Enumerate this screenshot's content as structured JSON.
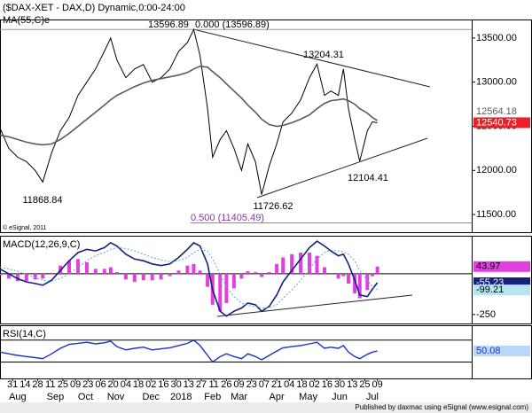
{
  "chart_data": [
    {
      "type": "line",
      "title": "($DAX-XET - DAX,D) Dynamic,0:00-24:00",
      "x": [
        0,
        7,
        14,
        21,
        28,
        34,
        41,
        48,
        55,
        62,
        69,
        76,
        83,
        88,
        93,
        100,
        107,
        114,
        121,
        128,
        135,
        142,
        149,
        154,
        159,
        165,
        169,
        175,
        180,
        186,
        192,
        197,
        203,
        208,
        214,
        220,
        225,
        232,
        239,
        246,
        252,
        258,
        263,
        269,
        273,
        277,
        282,
        286,
        292,
        296,
        300
      ],
      "xlim": [
        0,
        375
      ],
      "xticks": [
        {
          "value": 10,
          "label": "31"
        },
        {
          "value": 20,
          "label": "14"
        },
        {
          "value": 30,
          "label": "28"
        },
        {
          "value": 40,
          "label": "11"
        },
        {
          "value": 50,
          "label": "25"
        },
        {
          "value": 60,
          "label": "09"
        },
        {
          "value": 70,
          "label": "23"
        },
        {
          "value": 80,
          "label": "06"
        },
        {
          "value": 90,
          "label": "20"
        },
        {
          "value": 100,
          "label": "04"
        },
        {
          "value": 110,
          "label": "18"
        },
        {
          "value": 120,
          "label": "02"
        },
        {
          "value": 130,
          "label": "16"
        },
        {
          "value": 140,
          "label": "30"
        },
        {
          "value": 150,
          "label": "13"
        },
        {
          "value": 160,
          "label": "27"
        },
        {
          "value": 170,
          "label": "11"
        },
        {
          "value": 180,
          "label": "26"
        },
        {
          "value": 190,
          "label": "09"
        },
        {
          "value": 200,
          "label": "23"
        },
        {
          "value": 210,
          "label": "07"
        },
        {
          "value": 220,
          "label": "21"
        },
        {
          "value": 230,
          "label": "04"
        },
        {
          "value": 240,
          "label": "18"
        },
        {
          "value": 250,
          "label": "02"
        },
        {
          "value": 260,
          "label": "16"
        },
        {
          "value": 270,
          "label": "30"
        },
        {
          "value": 280,
          "label": "13"
        },
        {
          "value": 290,
          "label": "25"
        },
        {
          "value": 300,
          "label": "09"
        }
      ],
      "month_ticks": [
        {
          "value": 14,
          "label": "Aug"
        },
        {
          "value": 44,
          "label": "Sep"
        },
        {
          "value": 68,
          "label": "Oct"
        },
        {
          "value": 92,
          "label": "Nov"
        },
        {
          "value": 120,
          "label": "Dec"
        },
        {
          "value": 144,
          "label": "2018"
        },
        {
          "value": 169,
          "label": "Feb"
        },
        {
          "value": 190,
          "label": "Mar"
        },
        {
          "value": 220,
          "label": "Apr"
        },
        {
          "value": 245,
          "label": "May"
        },
        {
          "value": 270,
          "label": "Jun"
        },
        {
          "value": 296,
          "label": "Jul"
        }
      ],
      "ylim": [
        11300,
        13710
      ],
      "yticks": [
        {
          "value": 13500,
          "label": "13500.00"
        },
        {
          "value": 13000,
          "label": "13000.00"
        },
        {
          "value": 12500,
          "label": "12500.00"
        },
        {
          "value": 12000,
          "label": "12000.00"
        },
        {
          "value": 11500,
          "label": "11500.00"
        }
      ],
      "levels": [
        {
          "value": 13596.89,
          "color": "#9a9a9a"
        },
        {
          "value": 11405.49,
          "color": "#b070c8"
        }
      ],
      "annotations": [
        "13596.89",
        "0.000 (13596.89)",
        "13204.31",
        "11868.84",
        "11726.62",
        "12104.41",
        "0.500 (11405.49)",
        "© eSignal, 2011"
      ],
      "series": [
        {
          "color": "#000000",
          "width": 1,
          "last_label": "12540.73",
          "label_fill": "#e8202a",
          "label_text": "#ffffff",
          "values": [
            12480,
            12250,
            12150,
            12100,
            12000,
            11868.84,
            12200,
            12450,
            12600,
            12850,
            13000,
            13150,
            13350,
            13500,
            13250,
            13050,
            13150,
            13200,
            13000,
            13050,
            13150,
            13350,
            13450,
            13596.89,
            13300,
            12700,
            12150,
            12350,
            12450,
            12250,
            12000,
            12300,
            12100,
            11726.62,
            12050,
            12300,
            12550,
            12650,
            12800,
            13050,
            13204.31,
            12850,
            12900,
            12850,
            13150,
            12700,
            12350,
            12104.41,
            12450,
            12550,
            12540.73
          ]
        },
        {
          "name": "MA(55,C)e",
          "color": "#5a5a5a",
          "width": 1.6,
          "last_label": "12564.18",
          "label_text": "#5a5a5a",
          "values": [
            12400,
            12380,
            12350,
            12320,
            12300,
            12290,
            12300,
            12350,
            12420,
            12500,
            12580,
            12660,
            12740,
            12800,
            12850,
            12900,
            12950,
            12990,
            13020,
            13040,
            13060,
            13080,
            13110,
            13150,
            13180,
            13170,
            13120,
            13050,
            12980,
            12900,
            12820,
            12740,
            12660,
            12580,
            12520,
            12500,
            12510,
            12540,
            12580,
            12630,
            12700,
            12760,
            12790,
            12800,
            12810,
            12790,
            12750,
            12700,
            12650,
            12600,
            12564.18
          ]
        }
      ]
    },
    {
      "type": "line",
      "title": "MACD(12,26,9,C)",
      "ylim": [
        -305,
        233
      ],
      "yticks": [
        -250
      ],
      "hlines": [
        0
      ],
      "series": [
        {
          "kind": "histogram",
          "color": "#e040e0",
          "last_label": "43.97",
          "label_fill": "#e040e0",
          "label_text": "#000000",
          "values": [
            -10,
            -30,
            -45,
            -45,
            -35,
            -30,
            5,
            50,
            80,
            90,
            70,
            30,
            30,
            40,
            10,
            -35,
            -50,
            -40,
            -40,
            -35,
            -15,
            20,
            50,
            60,
            20,
            -80,
            -190,
            -230,
            -180,
            -90,
            -30,
            15,
            10,
            -20,
            10,
            60,
            100,
            120,
            130,
            130,
            110,
            40,
            -5,
            -30,
            -15,
            -60,
            -120,
            -150,
            -100,
            -15,
            43.97
          ]
        },
        {
          "color": "#14207a",
          "width": 1.6,
          "last_label": "-55.23",
          "label_fill": "#14207a",
          "label_text": "#ffffff",
          "values": [
            30,
            0,
            -30,
            -50,
            -60,
            -70,
            -40,
            20,
            80,
            130,
            150,
            140,
            160,
            190,
            170,
            120,
            90,
            80,
            60,
            50,
            60,
            100,
            150,
            190,
            170,
            60,
            -100,
            -230,
            -260,
            -230,
            -210,
            -180,
            -190,
            -230,
            -200,
            -130,
            -50,
            20,
            90,
            160,
            200,
            170,
            140,
            110,
            120,
            60,
            -40,
            -130,
            -140,
            -95,
            -55.23
          ]
        },
        {
          "color": "#5aa8c8",
          "width": 1,
          "dotted": true,
          "last_label": "-99.21",
          "label_fill": "#b8e4f0",
          "label_text": "#000000",
          "values": [
            40,
            30,
            15,
            -5,
            -25,
            -40,
            -45,
            -30,
            0,
            40,
            80,
            110,
            130,
            150,
            160,
            155,
            140,
            120,
            100,
            85,
            75,
            80,
            100,
            130,
            150,
            140,
            90,
            0,
            -80,
            -140,
            -180,
            -195,
            -200,
            -210,
            -210,
            -190,
            -150,
            -100,
            -40,
            30,
            90,
            130,
            145,
            140,
            135,
            120,
            80,
            20,
            -40,
            -80,
            -99.21
          ]
        }
      ]
    },
    {
      "type": "line",
      "title": "RSI(14,C)",
      "ylim": [
        0,
        97
      ],
      "hlines": [
        70,
        30
      ],
      "series": [
        {
          "color": "#2030c8",
          "width": 1.4,
          "last_label": "50.08",
          "label_fill": "#b8d8f8",
          "label_text": "#2030c8",
          "values": [
            48,
            45,
            42,
            40,
            38,
            36,
            45,
            55,
            62,
            64,
            66,
            63,
            65,
            68,
            58,
            52,
            55,
            57,
            52,
            54,
            56,
            60,
            64,
            70,
            60,
            42,
            30,
            40,
            45,
            40,
            36,
            45,
            40,
            34,
            42,
            50,
            56,
            58,
            60,
            63,
            66,
            55,
            57,
            55,
            60,
            48,
            40,
            36,
            44,
            48,
            50.08
          ]
        }
      ]
    }
  ],
  "footer": "Published by daxmac using eSignal (www.esignal.com)"
}
